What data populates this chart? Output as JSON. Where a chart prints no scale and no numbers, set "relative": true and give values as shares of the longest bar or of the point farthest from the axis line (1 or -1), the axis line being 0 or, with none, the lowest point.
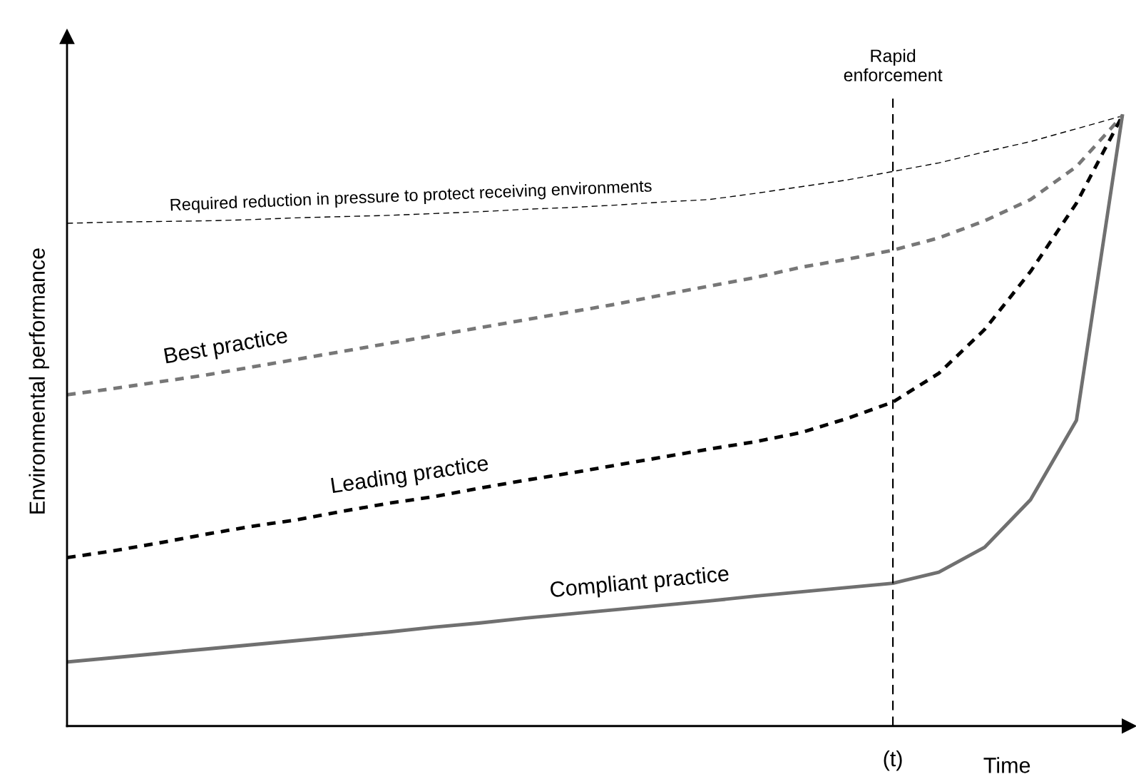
{
  "chart_data": {
    "type": "line",
    "relative": true,
    "xlabel": "Time",
    "ylabel": "Environmental performance",
    "annotations": [
      "Rapid\nenforcement",
      "(t)"
    ],
    "legend": false,
    "marker": "none",
    "categories": [
      null,
      null,
      null,
      null,
      null,
      null,
      null,
      null,
      null,
      null,
      null,
      null,
      null,
      null,
      null,
      null,
      null,
      null,
      null,
      null,
      null,
      null,
      null,
      null
    ],
    "series": [
      {
        "name": "Required reduction in pressure to protect receiving environments",
        "color": "#000000",
        "line_style": "dashed",
        "values": [
          0.824,
          0.826,
          0.827,
          0.828,
          0.83,
          0.833,
          0.835,
          0.837,
          0.84,
          0.843,
          0.847,
          0.85,
          0.854,
          0.859,
          0.863,
          0.873,
          0.884,
          0.895,
          0.909,
          0.923,
          0.941,
          0.958,
          0.979,
          1.0
        ]
      },
      {
        "name": "Best practice",
        "color": "#777777",
        "line_style": "dotted",
        "values": [
          0.543,
          0.553,
          0.564,
          0.575,
          0.588,
          0.601,
          0.614,
          0.627,
          0.64,
          0.653,
          0.666,
          0.679,
          0.692,
          0.707,
          0.721,
          0.735,
          0.752,
          0.765,
          0.78,
          0.8,
          0.828,
          0.863,
          0.917,
          1.0
        ]
      },
      {
        "name": "Leading practice",
        "color": "#000000",
        "line_style": "dotted",
        "values": [
          0.276,
          0.287,
          0.3,
          0.314,
          0.327,
          0.338,
          0.352,
          0.365,
          0.376,
          0.39,
          0.403,
          0.415,
          0.428,
          0.441,
          0.454,
          0.466,
          0.481,
          0.504,
          0.531,
          0.578,
          0.65,
          0.745,
          0.857,
          1.0
        ]
      },
      {
        "name": "Compliant practice",
        "color": "#707070",
        "line_style": "solid",
        "values": [
          0.105,
          0.112,
          0.119,
          0.126,
          0.133,
          0.14,
          0.147,
          0.154,
          0.162,
          0.169,
          0.177,
          0.184,
          0.191,
          0.198,
          0.205,
          0.213,
          0.22,
          0.227,
          0.234,
          0.252,
          0.293,
          0.371,
          0.501,
          1.0
        ]
      }
    ]
  }
}
